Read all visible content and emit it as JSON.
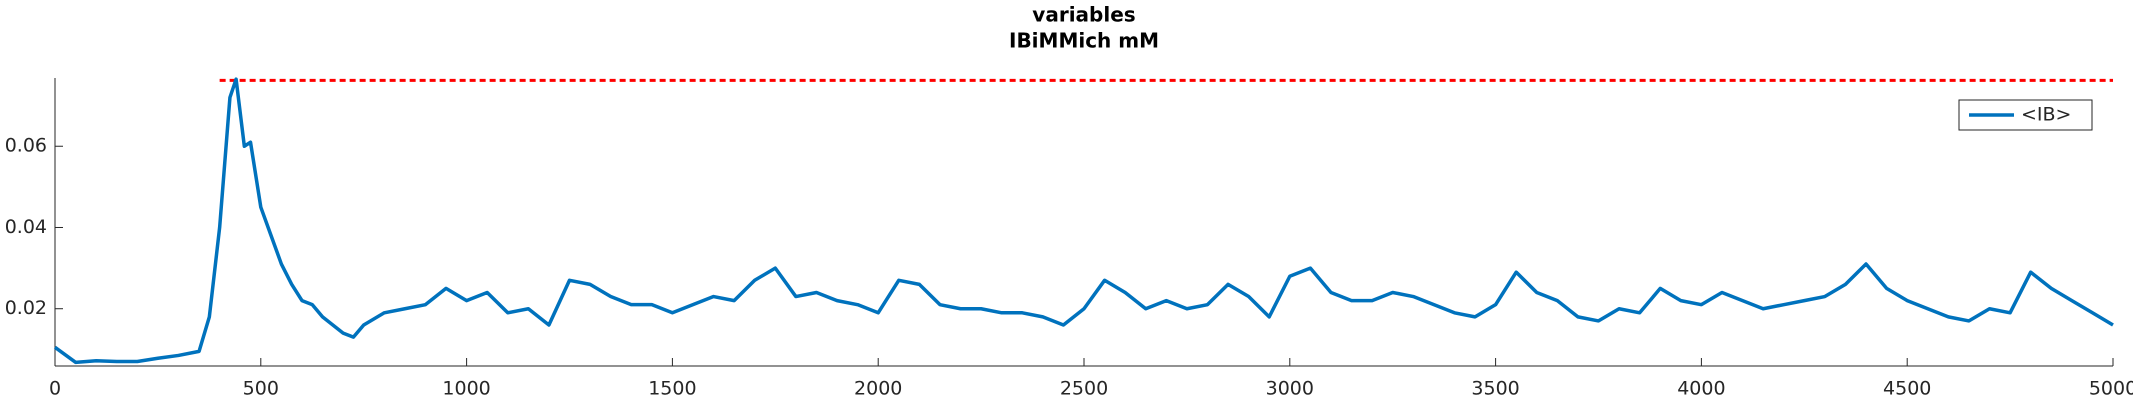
{
  "chart_data": {
    "type": "line",
    "title": "variables",
    "subtitle": "IBiMMich mM",
    "x": [
      0,
      50,
      100,
      150,
      200,
      250,
      300,
      350,
      375,
      400,
      425,
      440,
      460,
      475,
      500,
      525,
      550,
      575,
      600,
      625,
      650,
      675,
      700,
      725,
      750,
      800,
      850,
      900,
      950,
      1000,
      1050,
      1100,
      1150,
      1200,
      1250,
      1300,
      1350,
      1400,
      1450,
      1500,
      1550,
      1600,
      1650,
      1700,
      1750,
      1800,
      1850,
      1900,
      1950,
      2000,
      2050,
      2100,
      2150,
      2200,
      2250,
      2300,
      2350,
      2400,
      2450,
      2500,
      2550,
      2600,
      2650,
      2700,
      2750,
      2800,
      2850,
      2900,
      2950,
      3000,
      3050,
      3100,
      3150,
      3200,
      3250,
      3300,
      3350,
      3400,
      3450,
      3500,
      3550,
      3600,
      3650,
      3700,
      3750,
      3800,
      3850,
      3900,
      3950,
      4000,
      4050,
      4100,
      4150,
      4200,
      4250,
      4300,
      4350,
      4400,
      4450,
      4500,
      4550,
      4600,
      4650,
      4700,
      4750,
      4800,
      4850,
      4900,
      4950,
      5000
    ],
    "series": [
      {
        "name": "<IB>",
        "color": "#0072BD",
        "values": [
          0.0105,
          0.0068,
          0.0072,
          0.007,
          0.007,
          0.0078,
          0.0085,
          0.0095,
          0.018,
          0.04,
          0.072,
          0.0765,
          0.06,
          0.061,
          0.045,
          0.038,
          0.031,
          0.026,
          0.022,
          0.021,
          0.018,
          0.016,
          0.014,
          0.013,
          0.016,
          0.019,
          0.02,
          0.021,
          0.025,
          0.022,
          0.024,
          0.019,
          0.02,
          0.016,
          0.027,
          0.026,
          0.023,
          0.021,
          0.021,
          0.019,
          0.021,
          0.023,
          0.022,
          0.027,
          0.03,
          0.023,
          0.024,
          0.022,
          0.021,
          0.019,
          0.027,
          0.026,
          0.021,
          0.02,
          0.02,
          0.019,
          0.019,
          0.018,
          0.016,
          0.02,
          0.027,
          0.024,
          0.02,
          0.022,
          0.02,
          0.021,
          0.026,
          0.023,
          0.018,
          0.028,
          0.03,
          0.024,
          0.022,
          0.022,
          0.024,
          0.023,
          0.021,
          0.019,
          0.018,
          0.021,
          0.029,
          0.024,
          0.022,
          0.018,
          0.017,
          0.02,
          0.019,
          0.025,
          0.022,
          0.021,
          0.024,
          0.022,
          0.02,
          0.021,
          0.022,
          0.023,
          0.026,
          0.031,
          0.025,
          0.022,
          0.02,
          0.018,
          0.017,
          0.02,
          0.019,
          0.029,
          0.025,
          0.022,
          0.019,
          0.016
        ]
      }
    ],
    "threshold": {
      "y": 0.0762,
      "x": [
        400,
        5000
      ],
      "color": "#ff0000"
    },
    "xlim": [
      0,
      5000
    ],
    "xticks": [
      0,
      500,
      1000,
      1500,
      2000,
      2500,
      3000,
      3500,
      4000,
      4500,
      5000
    ],
    "ylim": [
      0.0059,
      0.0768
    ],
    "yticks": [
      0.02,
      0.04,
      0.06
    ],
    "legend": "top-right"
  }
}
